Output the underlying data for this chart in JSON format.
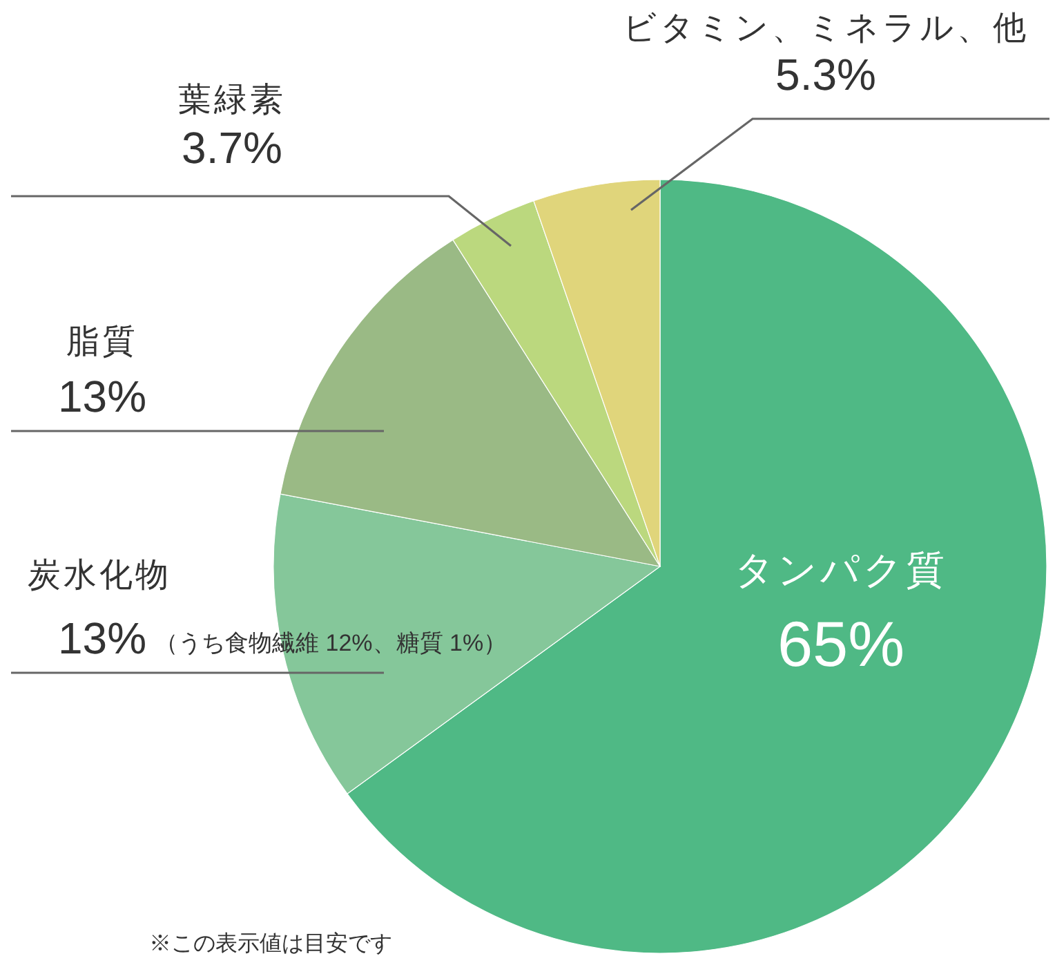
{
  "chart_data": {
    "type": "pie",
    "categories": [
      "タンパク質",
      "炭水化物",
      "脂質",
      "葉緑素",
      "ビタミン、ミネラル、他"
    ],
    "values": [
      65,
      13,
      13,
      3.7,
      5.3
    ],
    "colors": [
      "#4fb985",
      "#85c79a",
      "#9aba85",
      "#bbd87e",
      "#e0d57b"
    ],
    "value_labels": [
      "65%",
      "13%",
      "13%",
      "3.7%",
      "5.3%"
    ],
    "annotations": [
      "（うち食物繊維 12%、糖質 1%）",
      "※この表示値は目安です"
    ]
  }
}
